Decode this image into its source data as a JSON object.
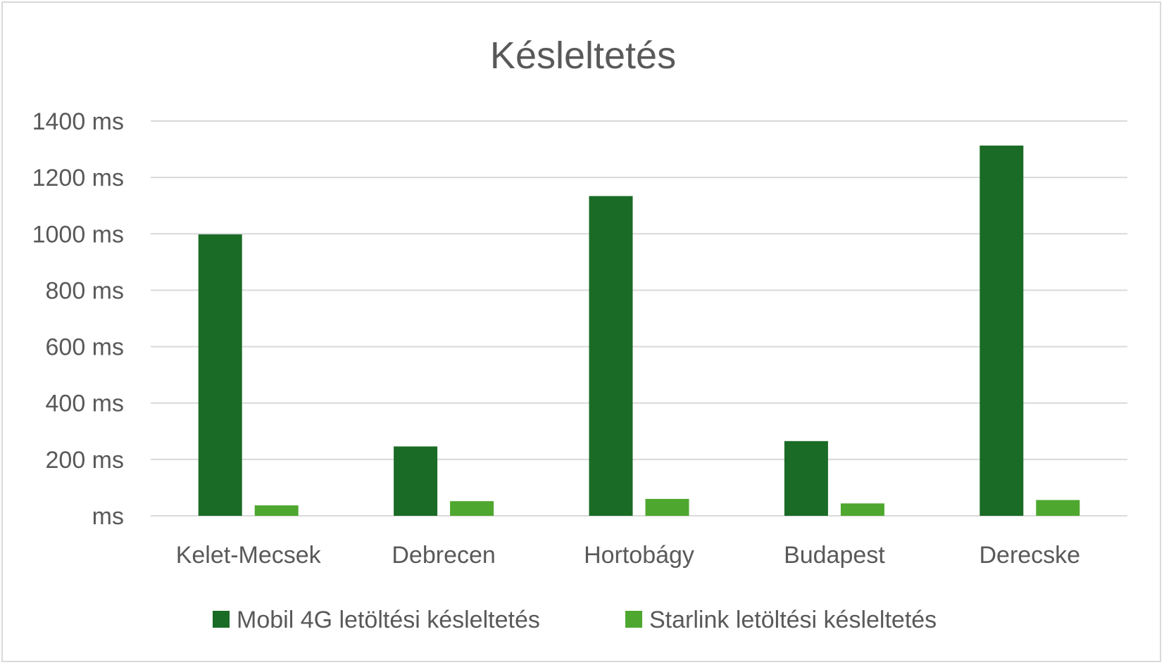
{
  "chart_data": {
    "type": "bar",
    "title": "Késleltetés",
    "categories": [
      "Kelet-Mecsek",
      "Debrecen",
      "Hortobágy",
      "Budapest",
      "Derecske"
    ],
    "series": [
      {
        "name": "Mobil 4G letöltési késleltetés",
        "color": "#1a6b25",
        "values": [
          998,
          246,
          1134,
          265,
          1313
        ]
      },
      {
        "name": "Starlink letöltési késleltetés",
        "color": "#4ea72e",
        "values": [
          37,
          52,
          60,
          44,
          56
        ]
      }
    ],
    "ylim": [
      0,
      1400
    ],
    "y_ticks": [
      {
        "value": 0,
        "label": "ms"
      },
      {
        "value": 200,
        "label": "200 ms"
      },
      {
        "value": 400,
        "label": "400 ms"
      },
      {
        "value": 600,
        "label": "600 ms"
      },
      {
        "value": 800,
        "label": "800 ms"
      },
      {
        "value": 1000,
        "label": "1000 ms"
      },
      {
        "value": 1200,
        "label": "1200 ms"
      },
      {
        "value": 1400,
        "label": "1400 ms"
      }
    ],
    "grid": true,
    "legend_position": "bottom"
  }
}
